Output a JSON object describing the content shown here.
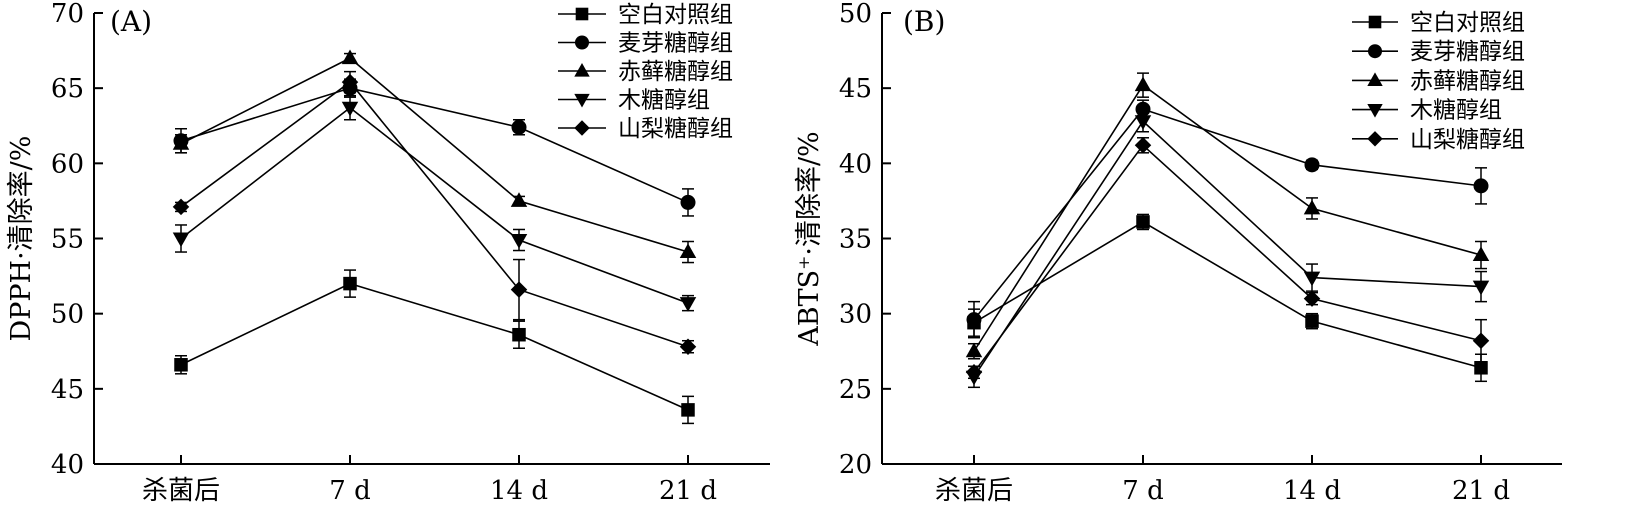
{
  "chart_data": [
    {
      "type": "line",
      "panel_label": "(A)",
      "ylabel": "DPPH·清除率/%",
      "ylim": [
        40,
        70
      ],
      "yticks": [
        40,
        45,
        50,
        55,
        60,
        65,
        70
      ],
      "categories": [
        "杀菌后",
        "7 d",
        "14 d",
        "21 d"
      ],
      "grid": false,
      "legend_position": "top-right",
      "series": [
        {
          "name": "空白对照组",
          "marker": "square",
          "values": [
            46.6,
            52.0,
            48.6,
            43.6
          ],
          "errors": [
            0.6,
            0.9,
            0.9,
            0.9
          ]
        },
        {
          "name": "麦芽糖醇组",
          "marker": "circle",
          "values": [
            61.5,
            65.0,
            62.4,
            57.4
          ],
          "errors": [
            0.8,
            0.6,
            0.5,
            0.9
          ]
        },
        {
          "name": "赤藓糖醇组",
          "marker": "triangle-up",
          "values": [
            61.3,
            67.0,
            57.5,
            54.1
          ],
          "errors": [
            0.6,
            0.3,
            0.3,
            0.7
          ]
        },
        {
          "name": "木糖醇组",
          "marker": "triangle-down",
          "values": [
            55.0,
            63.7,
            54.9,
            50.7
          ],
          "errors": [
            0.9,
            0.8,
            0.7,
            0.5
          ]
        },
        {
          "name": "山梨糖醇组",
          "marker": "diamond",
          "values": [
            57.1,
            65.4,
            51.6,
            47.8
          ],
          "errors": [
            0.3,
            0.7,
            2.0,
            0.4
          ]
        }
      ]
    },
    {
      "type": "line",
      "panel_label": "(B)",
      "ylabel": "ABTS⁺·清除率/%",
      "ylim": [
        20,
        50
      ],
      "yticks": [
        20,
        25,
        30,
        35,
        40,
        45,
        50
      ],
      "categories": [
        "杀菌后",
        "7 d",
        "14 d",
        "21 d"
      ],
      "grid": false,
      "legend_position": "top-right",
      "series": [
        {
          "name": "空白对照组",
          "marker": "square",
          "values": [
            29.4,
            36.1,
            29.5,
            26.4
          ],
          "errors": [
            0.9,
            0.5,
            0.5,
            0.9
          ]
        },
        {
          "name": "麦芽糖醇组",
          "marker": "circle",
          "values": [
            29.6,
            43.6,
            39.9,
            38.5
          ],
          "errors": [
            1.2,
            0.6,
            0.3,
            1.2
          ]
        },
        {
          "name": "赤藓糖醇组",
          "marker": "triangle-up",
          "values": [
            27.5,
            45.2,
            37.0,
            33.9
          ],
          "errors": [
            0.5,
            0.8,
            0.7,
            0.9
          ]
        },
        {
          "name": "木糖醇组",
          "marker": "triangle-down",
          "values": [
            25.8,
            42.8,
            32.4,
            31.8
          ],
          "errors": [
            0.7,
            0.7,
            0.9,
            1.0
          ]
        },
        {
          "name": "山梨糖醇组",
          "marker": "diamond",
          "values": [
            26.1,
            41.2,
            31.0,
            28.2
          ],
          "errors": [
            0.4,
            0.5,
            0.4,
            1.4
          ]
        }
      ]
    }
  ]
}
